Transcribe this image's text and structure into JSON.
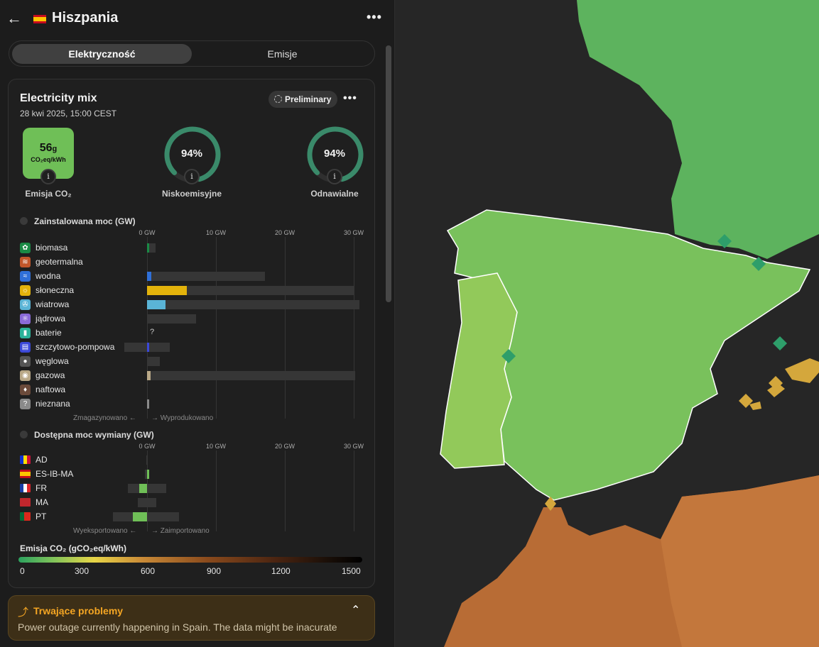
{
  "header": {
    "title": "Hiszpania"
  },
  "tabs": [
    {
      "label": "Elektryczność"
    },
    {
      "label": "Emisje"
    }
  ],
  "card": {
    "title": "Electricity mix",
    "date": "28 kwi 2025, 15:00 CEST",
    "badge": "Preliminary",
    "co2": {
      "value": "56",
      "unit": "g",
      "subunit": "CO₂eq/kWh",
      "label": "Emisja CO₂"
    },
    "low_carbon": {
      "value": "94%",
      "fraction": 0.94,
      "label": "Niskoemisyjne"
    },
    "renewable": {
      "value": "94%",
      "fraction": 0.94,
      "label": "Odnawialne"
    }
  },
  "capacity": {
    "title": "Zainstalowana moc (GW)",
    "axis": [
      "0 GW",
      "10 GW",
      "20 GW",
      "30 GW"
    ],
    "axis_max_gw": 32,
    "rows": [
      {
        "name": "biomasa",
        "icon": "leaf-icon",
        "color": "#1a8a45",
        "produced": 0.2,
        "capacity": 1.2
      },
      {
        "name": "geotermalna",
        "icon": "heat-icon",
        "color": "#c2562a",
        "produced": 0,
        "capacity": 0
      },
      {
        "name": "wodna",
        "icon": "water-icon",
        "color": "#2f6fd8",
        "produced": 0.6,
        "capacity": 17.1
      },
      {
        "name": "słoneczna",
        "icon": "sun-icon",
        "color": "#e3b30b",
        "produced": 5.8,
        "capacity": 30.0
      },
      {
        "name": "wiatrowa",
        "icon": "wind-icon",
        "color": "#5ab4d6",
        "produced": 2.7,
        "capacity": 30.8
      },
      {
        "name": "jądrowa",
        "icon": "atom-icon",
        "color": "#8a6ad8",
        "produced": 0,
        "capacity": 7.1
      },
      {
        "name": "baterie",
        "icon": "battery-icon",
        "color": "#2bb39a",
        "produced": 0,
        "capacity": 0,
        "unknown": "?"
      },
      {
        "name": "szczytowo-pompowa",
        "icon": "pump-icon",
        "color": "#3b48d8",
        "produced": 0.1,
        "capacity": 3.3,
        "storage": 3.3
      },
      {
        "name": "węglowa",
        "icon": "coal-icon",
        "color": "#555555",
        "produced": 0,
        "capacity": 1.9
      },
      {
        "name": "gazowa",
        "icon": "gas-icon",
        "color": "#b9a887",
        "produced": 0.5,
        "capacity": 30.2
      },
      {
        "name": "naftowa",
        "icon": "oil-icon",
        "color": "#6b4a3a",
        "produced": 0,
        "capacity": 0
      },
      {
        "name": "nieznana",
        "icon": "unknown-icon",
        "color": "#8a8a8a",
        "produced": 0.1,
        "capacity": 0.3
      }
    ],
    "foot_left": "Zmagazynowano",
    "foot_right": "Wyprodukowano"
  },
  "exchange": {
    "title": "Dostępna moc wymiany (GW)",
    "axis": [
      "0 GW",
      "10 GW",
      "20 GW",
      "30 GW"
    ],
    "rows": [
      {
        "name": "AD",
        "flag": "andorra-flag",
        "value": 0,
        "cap_neg": 0.1,
        "cap_pos": 0.1
      },
      {
        "name": "ES-IB-MA",
        "flag": "spain-flag",
        "value": 0.3,
        "cap_neg": 0.3,
        "cap_pos": 0.3
      },
      {
        "name": "FR",
        "flag": "france-flag",
        "value": -1.1,
        "cap_neg": 2.8,
        "cap_pos": 2.8
      },
      {
        "name": "MA",
        "flag": "morocco-flag",
        "value": 0,
        "cap_neg": 1.3,
        "cap_pos": 1.3
      },
      {
        "name": "PT",
        "flag": "portugal-flag",
        "value": -2.1,
        "cap_neg": 5.0,
        "cap_pos": 4.6
      }
    ],
    "foot_left": "Wyeksportowano",
    "foot_right": "Zaimportowano"
  },
  "legend": {
    "title": "Emisja CO₂ (gCO₂eq/kWh)",
    "ticks": [
      "0",
      "300",
      "600",
      "900",
      "1200",
      "1500"
    ]
  },
  "alert": {
    "title": "Trwające problemy",
    "text": "Power outage currently happening in Spain. The data might be inacurate"
  }
}
